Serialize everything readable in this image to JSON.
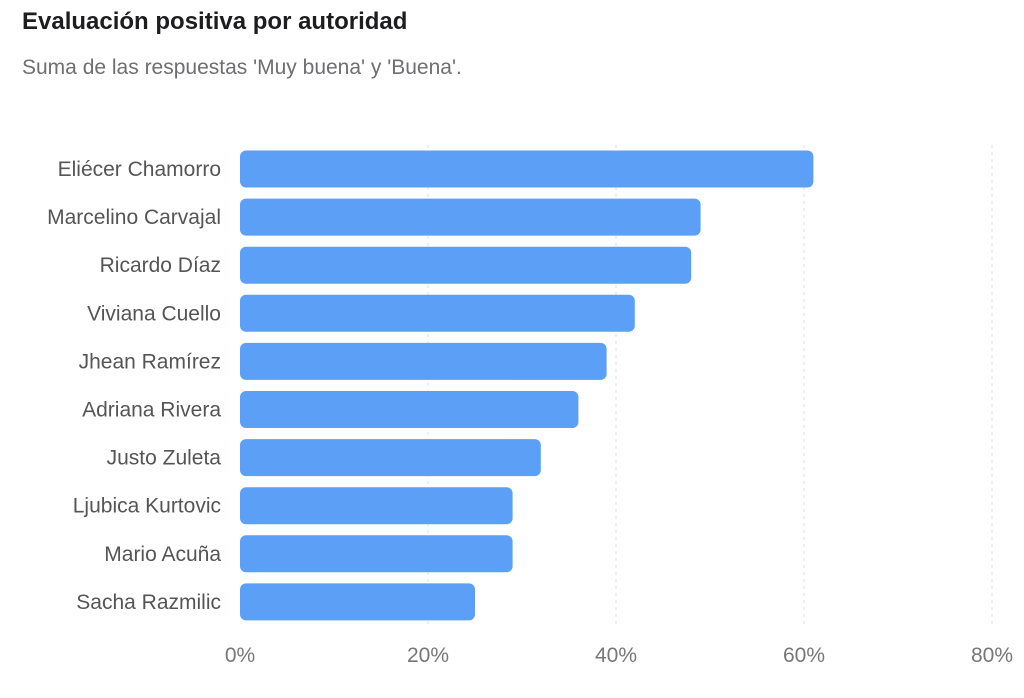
{
  "chart_data": {
    "type": "bar",
    "orientation": "horizontal",
    "title": "Evaluación positiva por autoridad",
    "subtitle": "Suma de las respuestas 'Muy buena' y 'Buena'.",
    "categories": [
      "Eliécer Chamorro",
      "Marcelino Carvajal",
      "Ricardo Díaz",
      "Viviana Cuello",
      "Jhean Ramírez",
      "Adriana Rivera",
      "Justo Zuleta",
      "Ljubica Kurtovic",
      "Mario Acuña",
      "Sacha Razmilic"
    ],
    "values": [
      61,
      49,
      48,
      42,
      39,
      36,
      32,
      29,
      29,
      25
    ],
    "xlim": [
      0,
      80
    ],
    "xticks": [
      0,
      20,
      40,
      60,
      80
    ],
    "xtick_labels": [
      "0%",
      "20%",
      "40%",
      "60%",
      "80%"
    ],
    "grid": "vertical-dashed",
    "bar_color": "#5b9ff7",
    "grid_color": "#e3e3e3"
  }
}
